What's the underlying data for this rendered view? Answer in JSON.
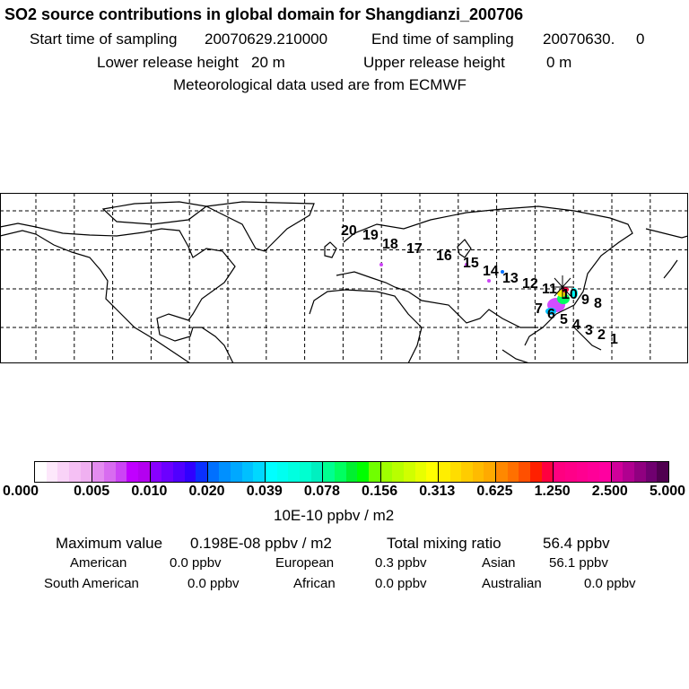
{
  "header": {
    "title": "SO2 source contributions in global domain for Shangdianzi_200706",
    "start_label": "Start time of sampling",
    "start_value": "20070629.210000",
    "end_label": "End time of sampling",
    "end_value": "20070630.     0",
    "lower_label": "Lower release height",
    "lower_value": "20 m",
    "upper_label": "Upper release height",
    "upper_value": "0 m",
    "met": "Meteorological data used are from ECMWF"
  },
  "map": {
    "trajectory_labels": [
      "20",
      "19",
      "18",
      "17",
      "16",
      "15",
      "14",
      "13",
      "12",
      "11",
      "10",
      "9",
      "8",
      "7",
      "6",
      "5",
      "4",
      "3",
      "2",
      "1"
    ]
  },
  "colorbar": {
    "ticks": [
      "0.000",
      "0.005",
      "0.010",
      "0.020",
      "0.039",
      "0.078",
      "0.156",
      "0.313",
      "0.625",
      "1.250",
      "2.500",
      "5.000"
    ],
    "segments": [
      [
        "#ffffff",
        "#fde8fb",
        "#f9d3f7",
        "#f5c0f4",
        "#f0b0f1"
      ],
      [
        "#e48cf0",
        "#d86cf0",
        "#cc44f5",
        "#c000ff",
        "#b400f0"
      ],
      [
        "#8800ff",
        "#6c00ff",
        "#5000ff",
        "#3000ff",
        "#0a30ff"
      ],
      [
        "#0070ff",
        "#0090ff",
        "#00a8ff",
        "#00c0ff",
        "#00d8ff"
      ],
      [
        "#00ffff",
        "#00fff0",
        "#00ffe0",
        "#00ffd0",
        "#00f0c0"
      ],
      [
        "#00ff90",
        "#00ff60",
        "#00f030",
        "#00ff00",
        "#70ff00"
      ],
      [
        "#a0ff00",
        "#b8ff00",
        "#d0ff00",
        "#e8ff00",
        "#ffff00"
      ],
      [
        "#ffee00",
        "#ffdd00",
        "#ffcc00",
        "#ffbb00",
        "#ffaa00"
      ],
      [
        "#ff8800",
        "#ff7000",
        "#ff5000",
        "#ff2000",
        "#ff0040"
      ],
      [
        "#ff0080",
        "#ff0088",
        "#ff0090",
        "#ff0098",
        "#ff00a0"
      ],
      [
        "#d0009a",
        "#b00090",
        "#900080",
        "#700070",
        "#500050"
      ]
    ],
    "unit": "10E-10 ppbv / m2"
  },
  "summary": {
    "max_label": "Maximum value",
    "max_value": "0.198E-08 ppbv / m2",
    "total_label": "Total mixing ratio",
    "total_value": "56.4 ppbv",
    "regions": [
      {
        "name": "American",
        "value": "0.0 ppbv"
      },
      {
        "name": "European",
        "value": "0.3 ppbv"
      },
      {
        "name": "Asian",
        "value": "56.1 ppbv"
      },
      {
        "name": "South American",
        "value": "0.0 ppbv"
      },
      {
        "name": "African",
        "value": "0.0 ppbv"
      },
      {
        "name": "Australian",
        "value": "0.0 ppbv"
      }
    ]
  }
}
